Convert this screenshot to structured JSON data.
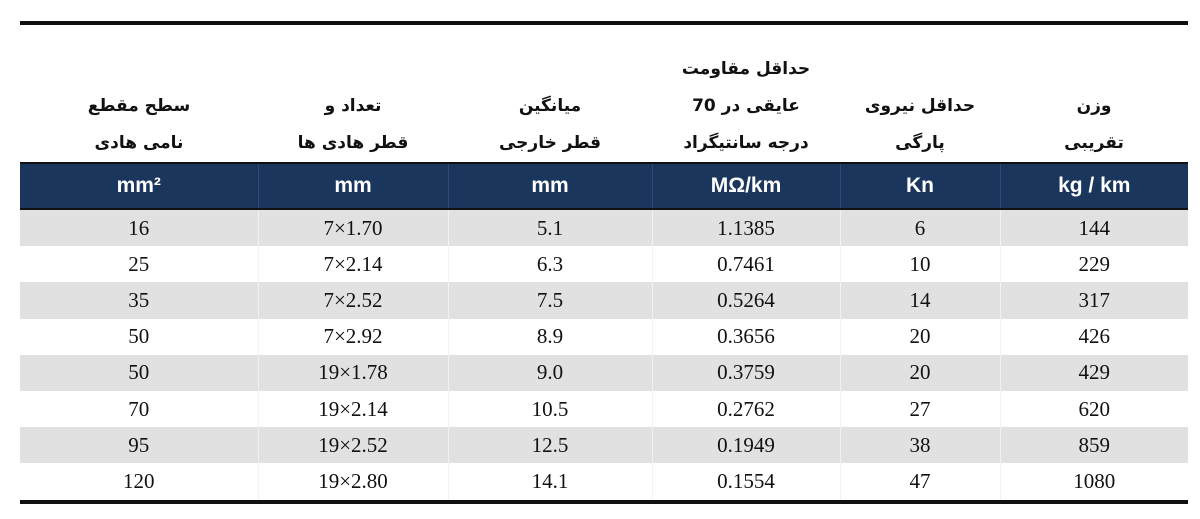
{
  "columns": [
    {
      "title_lines": [
        "سطح مقطع",
        "نامی هادی"
      ],
      "unit": "mm²"
    },
    {
      "title_lines": [
        "تعداد و",
        "قطر هادی ها"
      ],
      "unit": "mm"
    },
    {
      "title_lines": [
        "میانگین",
        "قطر خارجی"
      ],
      "unit": "mm"
    },
    {
      "title_lines": [
        "حداقل مقاومت",
        "عایقی در 70",
        "درجه سانتیگراد"
      ],
      "unit": "MΩ/km"
    },
    {
      "title_lines": [
        "حداقل نیروی",
        "پارگی"
      ],
      "unit": "Kn"
    },
    {
      "title_lines": [
        "وزن",
        "تقریبی"
      ],
      "unit": "kg / km"
    }
  ],
  "rows": [
    [
      "16",
      "7×1.70",
      "5.1",
      "1.1385",
      "6",
      "144"
    ],
    [
      "25",
      "7×2.14",
      "6.3",
      "0.7461",
      "10",
      "229"
    ],
    [
      "35",
      "7×2.52",
      "7.5",
      "0.5264",
      "14",
      "317"
    ],
    [
      "50",
      "7×2.92",
      "8.9",
      "0.3656",
      "20",
      "426"
    ],
    [
      "50",
      "19×1.78",
      "9.0",
      "0.3759",
      "20",
      "429"
    ],
    [
      "70",
      "19×2.14",
      "10.5",
      "0.2762",
      "27",
      "620"
    ],
    [
      "95",
      "19×2.52",
      "12.5",
      "0.1949",
      "38",
      "859"
    ],
    [
      "120",
      "19×2.80",
      "14.1",
      "0.1554",
      "47",
      "1080"
    ]
  ],
  "colors": {
    "header_band": "#1a365d",
    "stripe": "#e1e1e1"
  }
}
